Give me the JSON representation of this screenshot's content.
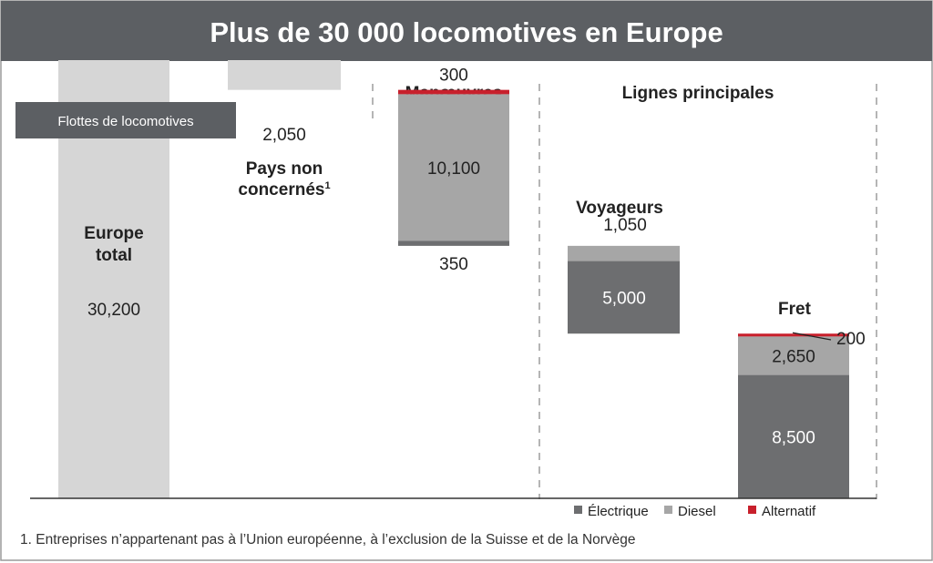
{
  "title": "Plus de 30 000 locomotives en Europe",
  "section_labels": {
    "fleet_tag": "Flottes de locomotives",
    "manoeuvres": "Manœuvres",
    "lignes": "Lignes principales",
    "voyageurs": "Voyageurs",
    "fret": "Fret"
  },
  "footnote": "1. Entreprises n’appartenant pas à l’Union européenne, à l’exclusion de la Suisse et de la Norvège",
  "colors": {
    "header": "#5c5f63",
    "electrique": "#6d6e70",
    "diesel": "#a6a6a6",
    "alternatif": "#c8202c",
    "total": "#d6d6d6",
    "non_concernes": "#d6d6d6"
  },
  "chart_data": {
    "type": "bar",
    "subtype": "waterfall",
    "title": "Plus de 30 000 locomotives en Europe",
    "xlabel": "",
    "ylabel": "",
    "ylim": [
      0,
      30200
    ],
    "grid": false,
    "legend_position": "bottom-right",
    "legend": [
      {
        "key": "electrique",
        "label": "Électrique"
      },
      {
        "key": "diesel",
        "label": "Diesel"
      },
      {
        "key": "alternatif",
        "label": "Alternatif"
      }
    ],
    "bars": [
      {
        "id": "total",
        "label_lines": [
          "Europe",
          "total"
        ],
        "segments": [
          {
            "key": "total",
            "value": 30200,
            "label": "30,200"
          }
        ]
      },
      {
        "id": "non_concernes",
        "label_lines": [
          "Pays non",
          "concernés"
        ],
        "footnote_mark": "1",
        "segments": [
          {
            "key": "non_concernes",
            "value": 2050,
            "label": "2,050"
          }
        ]
      },
      {
        "id": "manoeuvres",
        "group": "Manœuvres",
        "segments": [
          {
            "key": "alternatif",
            "value": 300,
            "label": "300"
          },
          {
            "key": "diesel",
            "value": 10100,
            "label": "10,100"
          },
          {
            "key": "electrique",
            "value": 350,
            "label": "350"
          }
        ]
      },
      {
        "id": "voyageurs",
        "group": "Lignes principales",
        "label_lines": [
          "Voyageurs"
        ],
        "segments": [
          {
            "key": "diesel",
            "value": 1050,
            "label": "1,050"
          },
          {
            "key": "electrique",
            "value": 5000,
            "label": "5,000"
          }
        ]
      },
      {
        "id": "fret",
        "group": "Lignes principales",
        "label_lines": [
          "Fret"
        ],
        "segments": [
          {
            "key": "alternatif",
            "value": 200,
            "label": "200"
          },
          {
            "key": "diesel",
            "value": 2650,
            "label": "2,650"
          },
          {
            "key": "electrique",
            "value": 8500,
            "label": "8,500"
          }
        ]
      }
    ]
  }
}
